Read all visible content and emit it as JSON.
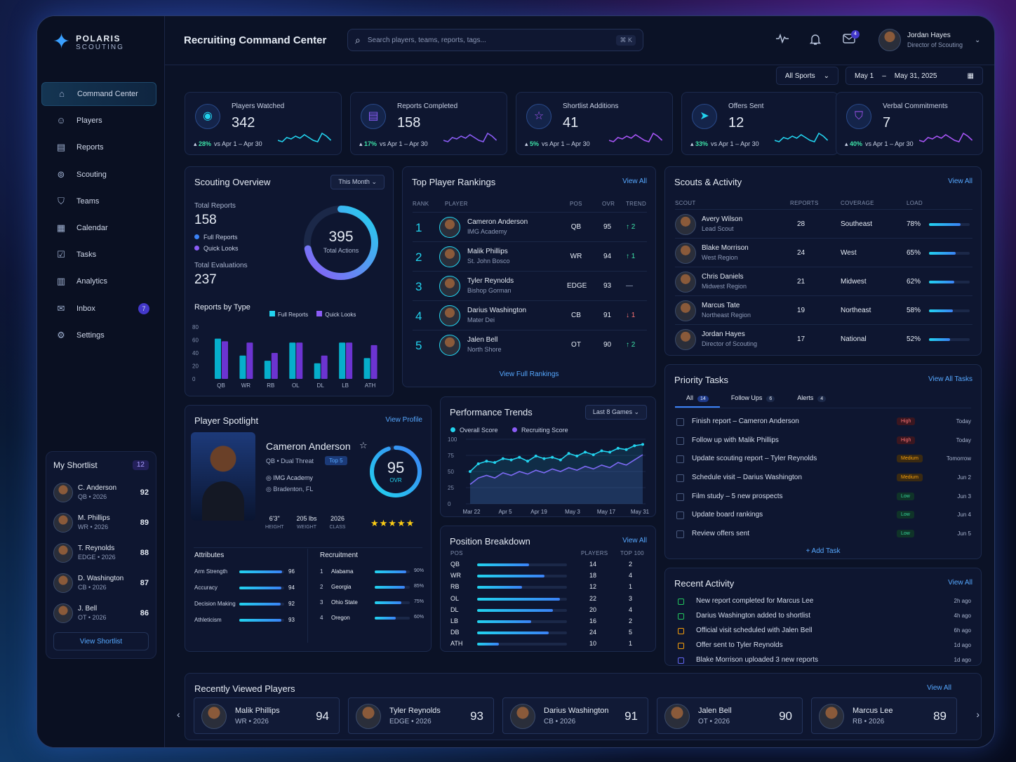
{
  "brand": {
    "name": "POLARIS",
    "sub": "SCOUTING"
  },
  "page_title": "Recruiting Command Center",
  "search": {
    "placeholder": "Search players, teams, reports, tags...",
    "shortcut": "⌘ K"
  },
  "notifications": {
    "mail_count": "4"
  },
  "user": {
    "name": "Jordan Hayes",
    "role": "Director of Scouting"
  },
  "filters": {
    "sport": "All Sports",
    "date_from": "May 1",
    "date_sep": "–",
    "date_to": "May 31, 2025"
  },
  "nav": [
    {
      "label": "Command Center",
      "icon": "home-icon",
      "active": true
    },
    {
      "label": "Players",
      "icon": "users-icon"
    },
    {
      "label": "Reports",
      "icon": "document-icon"
    },
    {
      "label": "Scouting",
      "icon": "binoculars-icon"
    },
    {
      "label": "Teams",
      "icon": "shield-icon"
    },
    {
      "label": "Calendar",
      "icon": "calendar-icon"
    },
    {
      "label": "Tasks",
      "icon": "checkbox-icon"
    },
    {
      "label": "Analytics",
      "icon": "bar-chart-icon"
    },
    {
      "label": "Inbox",
      "icon": "mail-icon",
      "badge": "7"
    },
    {
      "label": "Settings",
      "icon": "gear-icon"
    }
  ],
  "shortlist": {
    "title": "My Shortlist",
    "count": "12",
    "button": "View Shortlist",
    "items": [
      {
        "name": "C. Anderson",
        "sub": "QB • 2026",
        "score": "92"
      },
      {
        "name": "M. Phillips",
        "sub": "WR • 2026",
        "score": "89"
      },
      {
        "name": "T. Reynolds",
        "sub": "EDGE • 2026",
        "score": "88"
      },
      {
        "name": "D. Washington",
        "sub": "CB • 2026",
        "score": "87"
      },
      {
        "name": "J. Bell",
        "sub": "OT • 2026",
        "score": "86"
      }
    ]
  },
  "kpis": [
    {
      "label": "Players Watched",
      "value": "342",
      "delta": "28%",
      "period": "vs Apr 1 – Apr 30",
      "icon": "eye-icon",
      "color": "#22d3ee"
    },
    {
      "label": "Reports Completed",
      "value": "158",
      "delta": "17%",
      "period": "vs Apr 1 – Apr 30",
      "icon": "document-icon",
      "color": "#8b5cf6"
    },
    {
      "label": "Shortlist Additions",
      "value": "41",
      "delta": "5%",
      "period": "vs Apr 1 – Apr 30",
      "icon": "star-icon",
      "color": "#a855f7"
    },
    {
      "label": "Offers Sent",
      "value": "12",
      "delta": "33%",
      "period": "vs Apr 1 – Apr 30",
      "icon": "send-icon",
      "color": "#22d3ee"
    },
    {
      "label": "Verbal Commitments",
      "value": "7",
      "delta": "40%",
      "period": "vs Apr 1 – Apr 30",
      "icon": "shield-check-icon",
      "color": "#a855f7"
    }
  ],
  "overview": {
    "title": "Scouting Overview",
    "range": "This Month",
    "total_reports_label": "Total Reports",
    "total_reports": "158",
    "legend_full": "Full Reports",
    "legend_quick": "Quick Looks",
    "evals_label": "Total Evaluations",
    "evals": "237",
    "ring_value": "395",
    "ring_label": "Total Actions",
    "ring_fraction": 0.72,
    "by_type_title": "Reports by Type"
  },
  "chart_data": {
    "type": "bar",
    "title": "Reports by Type",
    "categories": [
      "QB",
      "WR",
      "RB",
      "OL",
      "DL",
      "LB",
      "ATH"
    ],
    "series": [
      {
        "name": "Full Reports",
        "values": [
          62,
          36,
          28,
          56,
          24,
          56,
          32
        ]
      },
      {
        "name": "Quick Looks",
        "values": [
          58,
          56,
          40,
          56,
          36,
          56,
          52
        ]
      }
    ],
    "yticks": [
      "80",
      "60",
      "40",
      "20",
      "0"
    ],
    "ylim": [
      0,
      80
    ]
  },
  "rankings": {
    "title": "Top Player Rankings",
    "link": "View All",
    "cols": [
      "RANK",
      "PLAYER",
      "POS",
      "OVR",
      "TREND"
    ],
    "footer": "View Full Rankings",
    "rows": [
      {
        "rank": "1",
        "name": "Cameron Anderson",
        "school": "IMG Academy",
        "pos": "QB",
        "ovr": "95",
        "trend": "↑ 2",
        "dir": "up"
      },
      {
        "rank": "2",
        "name": "Malik Phillips",
        "school": "St. John Bosco",
        "pos": "WR",
        "ovr": "94",
        "trend": "↑ 1",
        "dir": "up"
      },
      {
        "rank": "3",
        "name": "Tyler Reynolds",
        "school": "Bishop Gorman",
        "pos": "EDGE",
        "ovr": "93",
        "trend": "—",
        "dir": "flat"
      },
      {
        "rank": "4",
        "name": "Darius Washington",
        "school": "Mater Dei",
        "pos": "CB",
        "ovr": "91",
        "trend": "↓ 1",
        "dir": "down"
      },
      {
        "rank": "5",
        "name": "Jalen Bell",
        "school": "North Shore",
        "pos": "OT",
        "ovr": "90",
        "trend": "↑ 2",
        "dir": "up"
      }
    ]
  },
  "scouts": {
    "title": "Scouts & Activity",
    "link": "View All",
    "cols": [
      "SCOUT",
      "REPORTS",
      "COVERAGE",
      "LOAD"
    ],
    "rows": [
      {
        "name": "Avery Wilson",
        "role": "Lead Scout",
        "reports": "28",
        "coverage": "Southeast",
        "load": "78%",
        "load_value": 0.78
      },
      {
        "name": "Blake Morrison",
        "role": "West Region",
        "reports": "24",
        "coverage": "West",
        "load": "65%",
        "load_value": 0.65
      },
      {
        "name": "Chris Daniels",
        "role": "Midwest Region",
        "reports": "21",
        "coverage": "Midwest",
        "load": "62%",
        "load_value": 0.62
      },
      {
        "name": "Marcus Tate",
        "role": "Northeast Region",
        "reports": "19",
        "coverage": "Northeast",
        "load": "58%",
        "load_value": 0.58
      },
      {
        "name": "Jordan Hayes",
        "role": "Director of Scouting",
        "reports": "17",
        "coverage": "National",
        "load": "52%",
        "load_value": 0.52
      }
    ]
  },
  "spotlight": {
    "title": "Player Spotlight",
    "link": "View Profile",
    "name": "Cameron Anderson",
    "pos": "QB • Dual Threat",
    "tag": "Top 5",
    "school": "IMG Academy",
    "city": "Bradenton, FL",
    "ovr": "95",
    "ovr_label": "OVR",
    "ovr_fraction": 0.95,
    "height": "6'3\"",
    "height_label": "HEIGHT",
    "weight": "205 lbs",
    "weight_label": "WEIGHT",
    "class": "2026",
    "class_label": "CLASS",
    "stars": "★★★★★",
    "attributes_title": "Attributes",
    "attributes": [
      {
        "label": "Arm Strength",
        "value": "96",
        "v": 0.96
      },
      {
        "label": "Accuracy",
        "value": "94",
        "v": 0.94
      },
      {
        "label": "Decision Making",
        "value": "92",
        "v": 0.92
      },
      {
        "label": "Athleticism",
        "value": "93",
        "v": 0.93
      }
    ],
    "recruitment_title": "Recruitment",
    "recruitment": [
      {
        "n": "1",
        "school": "Alabama",
        "pct": "90%",
        "v": 0.9
      },
      {
        "n": "2",
        "school": "Georgia",
        "pct": "85%",
        "v": 0.85
      },
      {
        "n": "3",
        "school": "Ohio State",
        "pct": "75%",
        "v": 0.75
      },
      {
        "n": "4",
        "school": "Oregon",
        "pct": "60%",
        "v": 0.6
      }
    ]
  },
  "trends": {
    "title": "Performance Trends",
    "range": "Last 8 Games",
    "legend": [
      "Overall Score",
      "Recruiting Score"
    ],
    "yticks": [
      "100",
      "75",
      "50",
      "25",
      "0"
    ],
    "xticks": [
      "Mar 22",
      "Apr 5",
      "Apr 19",
      "May 3",
      "May 17",
      "May 31"
    ],
    "overall": [
      50,
      62,
      66,
      64,
      70,
      68,
      72,
      66,
      74,
      70,
      72,
      68,
      78,
      74,
      80,
      76,
      82,
      80,
      86,
      84,
      90,
      92
    ],
    "recruiting": [
      30,
      40,
      44,
      40,
      48,
      44,
      50,
      46,
      52,
      48,
      54,
      50,
      56,
      52,
      58,
      54,
      60,
      56,
      64,
      60,
      68,
      76
    ]
  },
  "positions": {
    "title": "Position Breakdown",
    "link": "View All",
    "cols": [
      "POS",
      "PLAYERS",
      "TOP 100"
    ],
    "rows": [
      {
        "pos": "QB",
        "players": "14",
        "top": "2",
        "v": 0.58
      },
      {
        "pos": "WR",
        "players": "18",
        "top": "4",
        "v": 0.75
      },
      {
        "pos": "RB",
        "players": "12",
        "top": "1",
        "v": 0.5
      },
      {
        "pos": "OL",
        "players": "22",
        "top": "3",
        "v": 0.92
      },
      {
        "pos": "DL",
        "players": "20",
        "top": "4",
        "v": 0.84
      },
      {
        "pos": "LB",
        "players": "16",
        "top": "2",
        "v": 0.6
      },
      {
        "pos": "DB",
        "players": "24",
        "top": "5",
        "v": 0.8
      },
      {
        "pos": "ATH",
        "players": "10",
        "top": "1",
        "v": 0.24
      }
    ]
  },
  "tasks": {
    "title": "Priority Tasks",
    "link": "View All Tasks",
    "tabs": [
      {
        "label": "All",
        "count": "14"
      },
      {
        "label": "Follow Ups",
        "count": "6"
      },
      {
        "label": "Alerts",
        "count": "4"
      }
    ],
    "add": "+ Add Task",
    "items": [
      {
        "text": "Finish report – Cameron Anderson",
        "priority": "High",
        "due": "Today"
      },
      {
        "text": "Follow up with Malik Phillips",
        "priority": "High",
        "due": "Today"
      },
      {
        "text": "Update scouting report – Tyler Reynolds",
        "priority": "Medium",
        "due": "Tomorrow"
      },
      {
        "text": "Schedule visit – Darius Washington",
        "priority": "Medium",
        "due": "Jun 2"
      },
      {
        "text": "Film study – 5 new prospects",
        "priority": "Low",
        "due": "Jun 3"
      },
      {
        "text": "Update board rankings",
        "priority": "Low",
        "due": "Jun 4"
      },
      {
        "text": "Review offers sent",
        "priority": "Low",
        "due": "Jun 5"
      }
    ]
  },
  "activity": {
    "title": "Recent Activity",
    "link": "View All",
    "items": [
      {
        "text": "New report completed for Marcus Lee",
        "time": "2h ago",
        "color": "#22c55e"
      },
      {
        "text": "Darius Washington added to shortlist",
        "time": "4h ago",
        "color": "#22c55e"
      },
      {
        "text": "Official visit scheduled with Jalen Bell",
        "time": "6h ago",
        "color": "#f59e0b"
      },
      {
        "text": "Offer sent to Tyler Reynolds",
        "time": "1d ago",
        "color": "#f59e0b"
      },
      {
        "text": "Blake Morrison uploaded 3 new reports",
        "time": "1d ago",
        "color": "#6366f1"
      }
    ]
  },
  "recent": {
    "title": "Recently Viewed Players",
    "link": "View All",
    "items": [
      {
        "name": "Malik Phillips",
        "sub": "WR • 2026",
        "score": "94"
      },
      {
        "name": "Tyler Reynolds",
        "sub": "EDGE • 2026",
        "score": "93"
      },
      {
        "name": "Darius Washington",
        "sub": "CB • 2026",
        "score": "91"
      },
      {
        "name": "Jalen Bell",
        "sub": "OT • 2026",
        "score": "90"
      },
      {
        "name": "Marcus Lee",
        "sub": "RB • 2026",
        "score": "89"
      }
    ]
  }
}
